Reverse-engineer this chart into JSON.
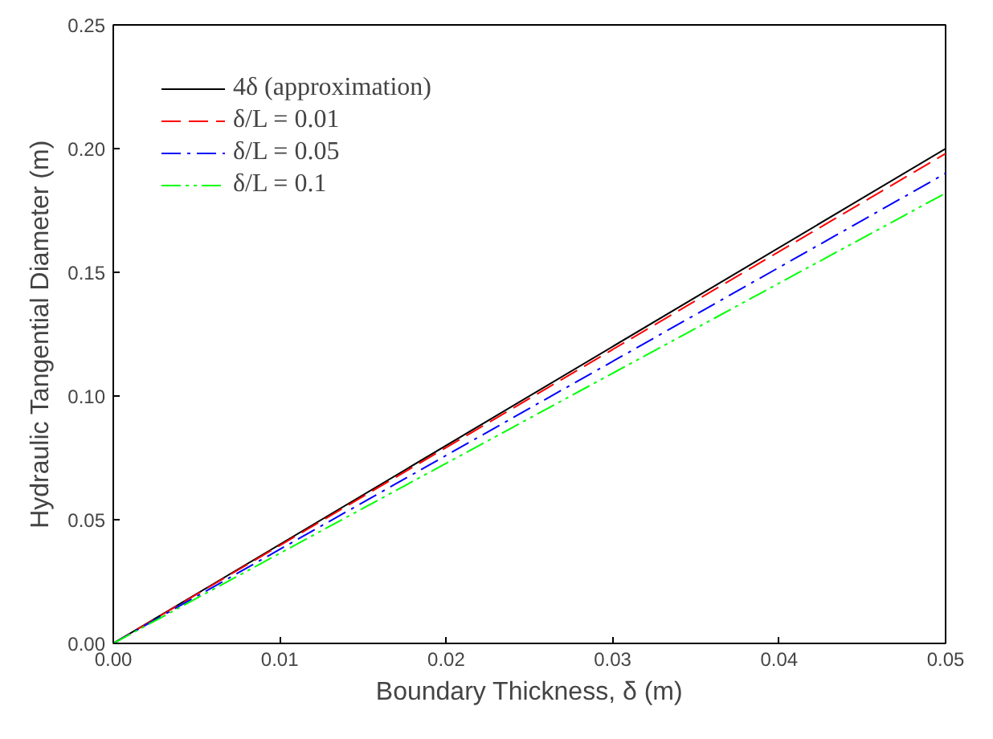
{
  "chart_data": {
    "type": "line",
    "xlabel": "Boundary Thickness, δ (m)",
    "ylabel": "Hydraulic Tangential Diameter (m)",
    "xlim": [
      0,
      0.05
    ],
    "ylim": [
      0,
      0.25
    ],
    "xticks": [
      {
        "value": 0,
        "label": "0.00"
      },
      {
        "value": 0.01,
        "label": "0.01"
      },
      {
        "value": 0.02,
        "label": "0.02"
      },
      {
        "value": 0.03,
        "label": "0.03"
      },
      {
        "value": 0.04,
        "label": "0.04"
      },
      {
        "value": 0.05,
        "label": "0.05"
      }
    ],
    "yticks": [
      {
        "value": 0,
        "label": "0.00"
      },
      {
        "value": 0.05,
        "label": "0.05"
      },
      {
        "value": 0.1,
        "label": "0.10"
      },
      {
        "value": 0.15,
        "label": "0.15"
      },
      {
        "value": 0.2,
        "label": "0.20"
      },
      {
        "value": 0.25,
        "label": "0.25"
      }
    ],
    "x": [
      0,
      0.05
    ],
    "series": [
      {
        "name": "4δ (approximation)",
        "color": "#000000",
        "values": [
          0,
          0.2
        ],
        "line_style": "solid"
      },
      {
        "name": "δ/L = 0.01",
        "color": "#ff0000",
        "values": [
          0,
          0.198
        ],
        "line_style": "dashed"
      },
      {
        "name": "δ/L = 0.05",
        "color": "#0000ff",
        "values": [
          0,
          0.19
        ],
        "line_style": "dashdot"
      },
      {
        "name": "δ/L = 0.1",
        "color": "#00ff00",
        "values": [
          0,
          0.182
        ],
        "line_style": "dashdotdot"
      }
    ],
    "grid": false,
    "legend": "top left"
  }
}
